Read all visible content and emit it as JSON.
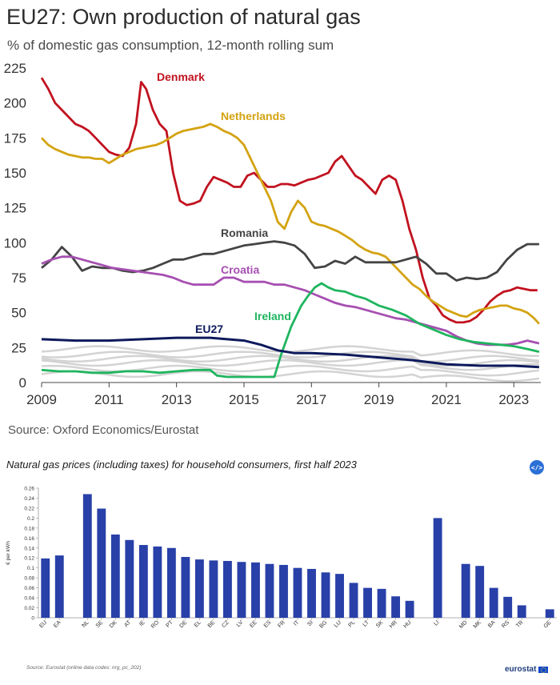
{
  "top": {
    "title": "EU27: Own production of natural gas",
    "subtitle": "% of domestic gas consumption, 12-month rolling sum",
    "source": "Source: Oxford Economics/Eurostat"
  },
  "bottom": {
    "title": "Natural gas prices (including taxes) for household consumers, first half 2023",
    "embed_label": "</>",
    "source": "Source: Eurostat (online data codes: nrg_pc_202)",
    "logo_text": "eurostat"
  },
  "chart_data": [
    {
      "type": "line",
      "title": "EU27: Own production of natural gas",
      "subtitle": "% of domestic gas consumption, 12-month rolling sum",
      "ylim": [
        0,
        225
      ],
      "yticks": [
        0,
        25,
        50,
        75,
        100,
        125,
        150,
        175,
        200,
        225
      ],
      "xlim": [
        2009,
        2023.8
      ],
      "xticks": [
        2009,
        2011,
        2013,
        2015,
        2017,
        2019,
        2021,
        2023
      ],
      "grid": false,
      "series": [
        {
          "name": "Denmark",
          "color": "#c1121f",
          "x": [
            2009,
            2009.2,
            2009.4,
            2009.6,
            2009.8,
            2010,
            2010.2,
            2010.4,
            2010.6,
            2010.8,
            2011,
            2011.2,
            2011.4,
            2011.6,
            2011.8,
            2011.95,
            2012.1,
            2012.3,
            2012.5,
            2012.7,
            2012.9,
            2013.1,
            2013.3,
            2013.5,
            2013.7,
            2013.9,
            2014.1,
            2014.3,
            2014.5,
            2014.7,
            2014.9,
            2015.1,
            2015.3,
            2015.5,
            2015.7,
            2015.9,
            2016.1,
            2016.3,
            2016.5,
            2016.7,
            2016.9,
            2017.1,
            2017.3,
            2017.5,
            2017.7,
            2017.9,
            2018.1,
            2018.3,
            2018.5,
            2018.7,
            2018.9,
            2019.1,
            2019.3,
            2019.5,
            2019.7,
            2019.9,
            2020.1,
            2020.3,
            2020.5,
            2020.7,
            2020.9,
            2021.1,
            2021.3,
            2021.5,
            2021.7,
            2021.9,
            2022.1,
            2022.3,
            2022.5,
            2022.7,
            2022.9,
            2023.1,
            2023.3,
            2023.5,
            2023.7
          ],
          "y": [
            218,
            210,
            200,
            195,
            190,
            185,
            183,
            180,
            175,
            170,
            165,
            163,
            162,
            168,
            185,
            215,
            210,
            195,
            185,
            180,
            150,
            130,
            127,
            128,
            130,
            140,
            147,
            145,
            143,
            140,
            140,
            148,
            150,
            145,
            140,
            140,
            142,
            142,
            141,
            143,
            145,
            146,
            148,
            150,
            158,
            162,
            155,
            148,
            145,
            140,
            135,
            145,
            148,
            145,
            130,
            110,
            95,
            75,
            60,
            55,
            48,
            45,
            43,
            43,
            44,
            47,
            52,
            58,
            62,
            65,
            66,
            68,
            67,
            66,
            66
          ]
        },
        {
          "name": "Netherlands",
          "color": "#d4a312",
          "x": [
            2009,
            2009.2,
            2009.4,
            2009.6,
            2009.8,
            2010,
            2010.2,
            2010.4,
            2010.6,
            2010.8,
            2011,
            2011.2,
            2011.4,
            2011.6,
            2011.8,
            2012,
            2012.2,
            2012.4,
            2012.6,
            2012.8,
            2013,
            2013.2,
            2013.4,
            2013.6,
            2013.8,
            2014,
            2014.2,
            2014.4,
            2014.6,
            2014.8,
            2015,
            2015.2,
            2015.4,
            2015.6,
            2015.8,
            2016,
            2016.2,
            2016.4,
            2016.6,
            2016.8,
            2017,
            2017.2,
            2017.4,
            2017.6,
            2017.8,
            2018,
            2018.2,
            2018.4,
            2018.6,
            2018.8,
            2019,
            2019.2,
            2019.4,
            2019.6,
            2019.8,
            2020,
            2020.2,
            2020.4,
            2020.6,
            2020.8,
            2021,
            2021.2,
            2021.4,
            2021.6,
            2021.8,
            2022,
            2022.2,
            2022.4,
            2022.6,
            2022.8,
            2023,
            2023.2,
            2023.4,
            2023.6,
            2023.75
          ],
          "y": [
            175,
            170,
            167,
            165,
            163,
            162,
            161,
            161,
            160,
            160,
            157,
            160,
            163,
            165,
            167,
            168,
            169,
            170,
            172,
            175,
            178,
            180,
            181,
            182,
            183,
            185,
            183,
            180,
            178,
            175,
            170,
            160,
            150,
            140,
            130,
            115,
            110,
            122,
            130,
            125,
            115,
            113,
            112,
            110,
            108,
            105,
            102,
            98,
            95,
            93,
            92,
            90,
            85,
            80,
            75,
            70,
            67,
            62,
            58,
            55,
            52,
            50,
            48,
            47,
            50,
            52,
            53,
            54,
            55,
            55,
            53,
            52,
            50,
            46,
            42
          ]
        },
        {
          "name": "Romania",
          "color": "#444444",
          "x": [
            2009,
            2009.3,
            2009.6,
            2009.9,
            2010.2,
            2010.5,
            2010.8,
            2011.1,
            2011.4,
            2011.7,
            2012,
            2012.3,
            2012.6,
            2012.9,
            2013.2,
            2013.5,
            2013.8,
            2014.1,
            2014.4,
            2014.7,
            2015,
            2015.3,
            2015.6,
            2015.9,
            2016.2,
            2016.5,
            2016.8,
            2017.1,
            2017.4,
            2017.7,
            2018,
            2018.3,
            2018.6,
            2018.9,
            2019.2,
            2019.5,
            2019.8,
            2020.1,
            2020.4,
            2020.7,
            2021,
            2021.3,
            2021.6,
            2021.9,
            2022.2,
            2022.5,
            2022.8,
            2023.1,
            2023.4,
            2023.75
          ],
          "y": [
            82,
            88,
            97,
            90,
            80,
            83,
            82,
            82,
            80,
            79,
            80,
            82,
            85,
            88,
            88,
            90,
            92,
            92,
            94,
            96,
            98,
            99,
            100,
            101,
            100,
            98,
            92,
            82,
            83,
            87,
            85,
            90,
            86,
            86,
            86,
            86,
            88,
            90,
            85,
            78,
            78,
            73,
            75,
            74,
            75,
            79,
            88,
            95,
            99,
            99
          ]
        },
        {
          "name": "Croatia",
          "color": "#a64fb1",
          "x": [
            2009,
            2009.3,
            2009.6,
            2009.9,
            2010.2,
            2010.5,
            2010.8,
            2011.1,
            2011.4,
            2011.7,
            2012,
            2012.3,
            2012.6,
            2012.9,
            2013.2,
            2013.5,
            2013.8,
            2014.1,
            2014.4,
            2014.7,
            2015,
            2015.3,
            2015.6,
            2015.9,
            2016.2,
            2016.5,
            2016.8,
            2017.1,
            2017.4,
            2017.7,
            2018,
            2018.3,
            2018.6,
            2018.9,
            2019.2,
            2019.5,
            2019.8,
            2020.1,
            2020.4,
            2020.7,
            2021,
            2021.3,
            2021.6,
            2021.9,
            2022.2,
            2022.5,
            2022.8,
            2023.1,
            2023.4,
            2023.75
          ],
          "y": [
            85,
            88,
            90,
            90,
            88,
            86,
            84,
            82,
            81,
            80,
            79,
            78,
            77,
            75,
            72,
            70,
            70,
            70,
            75,
            75,
            72,
            72,
            72,
            70,
            70,
            68,
            66,
            63,
            60,
            57,
            55,
            54,
            52,
            50,
            48,
            46,
            45,
            43,
            41,
            39,
            37,
            33,
            30,
            28,
            27,
            27,
            27,
            28,
            30,
            28
          ]
        },
        {
          "name": "Ireland",
          "color": "#1fb55f",
          "x": [
            2009,
            2009.5,
            2010,
            2010.5,
            2011,
            2011.5,
            2012,
            2012.5,
            2013,
            2013.5,
            2014,
            2014.2,
            2014.5,
            2015,
            2015.5,
            2015.9,
            2016.1,
            2016.4,
            2016.7,
            2016.9,
            2017.1,
            2017.3,
            2017.5,
            2017.7,
            2018,
            2018.3,
            2018.6,
            2019,
            2019.4,
            2019.8,
            2020.2,
            2020.6,
            2021,
            2021.4,
            2021.8,
            2022.2,
            2022.6,
            2023,
            2023.4,
            2023.75
          ],
          "y": [
            9,
            8,
            8,
            7,
            7,
            8,
            8,
            7,
            8,
            9,
            9,
            5,
            4,
            4,
            4,
            4,
            20,
            40,
            55,
            62,
            68,
            71,
            68,
            66,
            65,
            62,
            60,
            55,
            52,
            48,
            42,
            38,
            34,
            31,
            29,
            28,
            27,
            26,
            24,
            22
          ]
        },
        {
          "name": "EU27",
          "color": "#0d1a5c",
          "x": [
            2009,
            2010,
            2011,
            2012,
            2013,
            2014,
            2015,
            2015.5,
            2016,
            2016.5,
            2017,
            2018,
            2019,
            2020,
            2021,
            2022,
            2023,
            2023.75
          ],
          "y": [
            31,
            30,
            30,
            31,
            32,
            32,
            30,
            27,
            23,
            21,
            21,
            20,
            18,
            16,
            13,
            12,
            12,
            11
          ]
        }
      ],
      "background_series_count": 6,
      "label_positions_note": ""
    },
    {
      "type": "bar",
      "title": "Natural gas prices (including taxes) for household consumers, first half 2023",
      "ylabel": "€ per kWh",
      "ylim": [
        0,
        0.26
      ],
      "yticks": [
        0,
        0.02,
        0.04,
        0.06,
        0.08,
        0.1,
        0.12,
        0.14,
        0.16,
        0.18,
        0.2,
        0.22,
        0.24,
        0.26
      ],
      "ytick_labels": [
        "0",
        "0.02",
        "0.04",
        "0.06",
        "0.08",
        "0.1",
        "0.12",
        "0.14",
        "0.16",
        "0.18",
        "0.2",
        "0.22",
        "0.24",
        "0.26"
      ],
      "bar_color": "#2840a8",
      "categories": [
        "EU",
        "EA",
        "",
        "NL",
        "SE",
        "DK",
        "AT",
        "IE",
        "RO",
        "PT",
        "DE",
        "EL",
        "BE",
        "CZ",
        "LV",
        "EE",
        "ES",
        "FR",
        "IT",
        "SI",
        "BG",
        "LU",
        "PL",
        "LT",
        "SK",
        "HR",
        "HU",
        "",
        "LI",
        "",
        "MD",
        "MK",
        "BA",
        "RS",
        "TR",
        "",
        "GE"
      ],
      "values": [
        0.119,
        0.125,
        null,
        0.248,
        0.219,
        0.167,
        0.156,
        0.146,
        0.143,
        0.14,
        0.122,
        0.117,
        0.115,
        0.114,
        0.112,
        0.111,
        0.108,
        0.106,
        0.1,
        0.098,
        0.091,
        0.088,
        0.07,
        0.06,
        0.058,
        0.043,
        0.034,
        null,
        0.2,
        null,
        0.108,
        0.104,
        0.06,
        0.042,
        0.025,
        null,
        0.017
      ]
    }
  ]
}
